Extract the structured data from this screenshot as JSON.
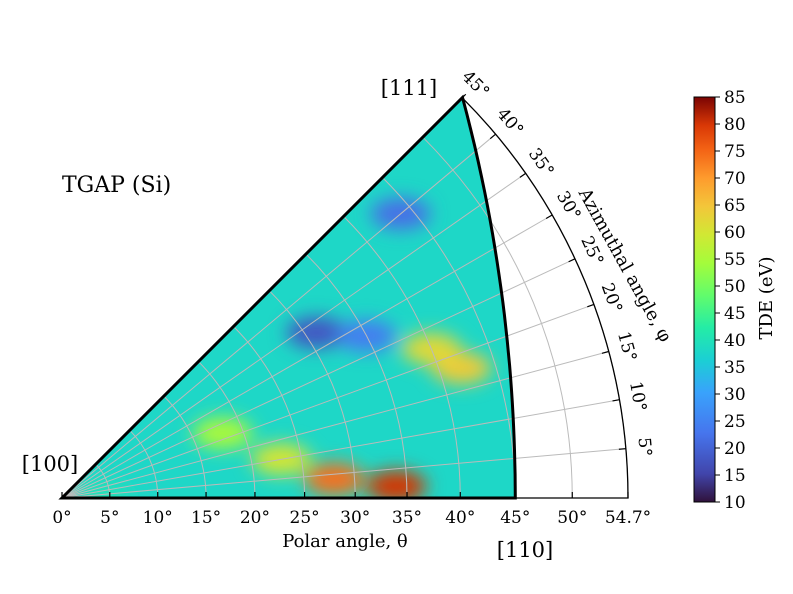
{
  "chart_data": {
    "type": "heatmap",
    "title": "TGAP (Si)",
    "xlabel": "Polar angle, θ",
    "ylabel": "Azimuthal angle, φ",
    "colorbar_label": "TDE (eV)",
    "colorbar_range": [
      10,
      85
    ],
    "colorbar_ticks": [
      "10",
      "15",
      "20",
      "25",
      "30",
      "35",
      "40",
      "45",
      "50",
      "55",
      "60",
      "65",
      "70",
      "75",
      "80",
      "85"
    ],
    "theta_ticks": [
      "0°",
      "5°",
      "10°",
      "15°",
      "20°",
      "25°",
      "30°",
      "35°",
      "40°",
      "45°",
      "50°",
      "54.7°"
    ],
    "theta_tick_values": [
      0,
      5,
      10,
      15,
      20,
      25,
      30,
      35,
      40,
      45,
      50,
      54.7
    ],
    "phi_ticks": [
      "5°",
      "10°",
      "15°",
      "20°",
      "25°",
      "30°",
      "35°",
      "40°",
      "45°"
    ],
    "phi_tick_values": [
      5,
      10,
      15,
      20,
      25,
      30,
      35,
      40,
      45
    ],
    "theta_range": [
      0,
      54.7
    ],
    "phi_range": [
      0,
      45
    ],
    "direction_labels": {
      "origin": "[100]",
      "theta45": "[110]",
      "apex": "[111]"
    },
    "hotspots_eV": [
      {
        "theta": 34,
        "phi": 2,
        "value": 80
      },
      {
        "theta": 28,
        "phi": 4,
        "value": 74
      },
      {
        "theta": 23,
        "phi": 10,
        "value": 60
      },
      {
        "theta": 42,
        "phi": 18,
        "value": 64
      },
      {
        "theta": 40,
        "phi": 22,
        "value": 62
      },
      {
        "theta": 18,
        "phi": 22,
        "value": 55
      },
      {
        "theta": 31,
        "phi": 33,
        "value": 18
      },
      {
        "theta": 35,
        "phi": 28,
        "value": 24
      },
      {
        "theta": 44,
        "phi": 40,
        "value": 22
      },
      {
        "theta": 4,
        "phi": 2,
        "value": 40
      }
    ],
    "background_eV": 38
  }
}
